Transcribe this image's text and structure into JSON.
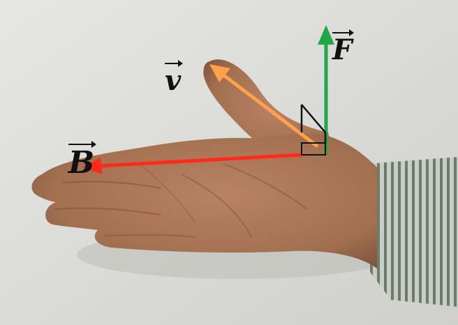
{
  "labels": {
    "b": "B",
    "v": "v",
    "f": "F"
  },
  "colors": {
    "wall": "#d9d9d6",
    "skin": "#a8765a",
    "skin_dark": "#7e5240",
    "sleeve": "#b9c2b6",
    "sleeve_stripe": "#6f7a6c",
    "vector_b": "#ff2a1a",
    "vector_v": "#ffa04a",
    "vector_f": "#1fa84a",
    "marker": "#111111"
  }
}
